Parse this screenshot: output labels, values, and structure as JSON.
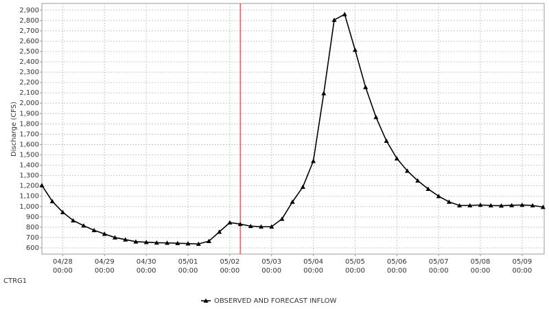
{
  "chart_data": {
    "type": "line",
    "y_label": "Discharge (CFS)",
    "station": "CTRG1",
    "x": [
      "04/27 12:00",
      "04/27 18:00",
      "04/28 00:00",
      "04/28 06:00",
      "04/28 12:00",
      "04/28 18:00",
      "04/29 00:00",
      "04/29 06:00",
      "04/29 12:00",
      "04/29 18:00",
      "04/30 00:00",
      "04/30 06:00",
      "04/30 12:00",
      "04/30 18:00",
      "05/01 00:00",
      "05/01 06:00",
      "05/01 12:00",
      "05/01 18:00",
      "05/02 00:00",
      "05/02 06:00",
      "05/02 12:00",
      "05/02 18:00",
      "05/03 00:00",
      "05/03 06:00",
      "05/03 12:00",
      "05/03 18:00",
      "05/04 00:00",
      "05/04 06:00",
      "05/04 12:00",
      "05/04 18:00",
      "05/05 00:00",
      "05/05 06:00",
      "05/05 12:00",
      "05/05 18:00",
      "05/06 00:00",
      "05/06 06:00",
      "05/06 12:00",
      "05/06 18:00",
      "05/07 00:00",
      "05/07 06:00",
      "05/07 12:00",
      "05/07 18:00",
      "05/08 00:00",
      "05/08 06:00",
      "05/08 12:00",
      "05/08 18:00",
      "05/09 00:00",
      "05/09 06:00",
      "05/09 12:00"
    ],
    "series": [
      {
        "name": "OBSERVED AND FORECAST INFLOW",
        "color": "#000000",
        "values": [
          1205,
          1050,
          945,
          865,
          815,
          770,
          735,
          700,
          680,
          660,
          655,
          650,
          648,
          645,
          642,
          638,
          665,
          755,
          845,
          830,
          810,
          805,
          805,
          880,
          1045,
          1190,
          1440,
          2095,
          2805,
          2860,
          2515,
          2155,
          1865,
          1635,
          1465,
          1345,
          1250,
          1170,
          1100,
          1045,
          1010,
          1010,
          1015,
          1010,
          1008,
          1012,
          1015,
          1010,
          995
        ]
      }
    ],
    "xlim": [
      "04/27 12:00",
      "05/09 12:40"
    ],
    "xticks": [
      {
        "value": "04/28 00:00",
        "label": "04/28\n00:00"
      },
      {
        "value": "04/29 00:00",
        "label": "04/29\n00:00"
      },
      {
        "value": "04/30 00:00",
        "label": "04/30\n00:00"
      },
      {
        "value": "05/01 00:00",
        "label": "05/01\n00:00"
      },
      {
        "value": "05/02 00:00",
        "label": "05/02\n00:00"
      },
      {
        "value": "05/03 00:00",
        "label": "05/03\n00:00"
      },
      {
        "value": "05/04 00:00",
        "label": "05/04\n00:00"
      },
      {
        "value": "05/05 00:00",
        "label": "05/05\n00:00"
      },
      {
        "value": "05/06 00:00",
        "label": "05/06\n00:00"
      },
      {
        "value": "05/07 00:00",
        "label": "05/07\n00:00"
      },
      {
        "value": "05/08 00:00",
        "label": "05/08\n00:00"
      },
      {
        "value": "05/09 00:00",
        "label": "05/09\n00:00"
      }
    ],
    "ylim": [
      540,
      2965
    ],
    "yticks": [
      600,
      700,
      800,
      900,
      {
        "value": 1000,
        "label": "1,000"
      },
      {
        "value": 1100,
        "label": "1,100"
      },
      {
        "value": 1200,
        "label": "1,200"
      },
      {
        "value": 1300,
        "label": "1,300"
      },
      {
        "value": 1400,
        "label": "1,400"
      },
      {
        "value": 1500,
        "label": "1,500"
      },
      {
        "value": 1600,
        "label": "1,600"
      },
      {
        "value": 1700,
        "label": "1,700"
      },
      {
        "value": 1800,
        "label": "1,800"
      },
      {
        "value": 1900,
        "label": "1,900"
      },
      {
        "value": 2000,
        "label": "2,000"
      },
      {
        "value": 2100,
        "label": "2,100"
      },
      {
        "value": 2200,
        "label": "2,200"
      },
      {
        "value": 2300,
        "label": "2,300"
      },
      {
        "value": 2400,
        "label": "2,400"
      },
      {
        "value": 2500,
        "label": "2,500"
      },
      {
        "value": 2600,
        "label": "2,600"
      },
      {
        "value": 2700,
        "label": "2,700"
      },
      {
        "value": 2800,
        "label": "2,800"
      },
      {
        "value": 2900,
        "label": "2,900"
      }
    ],
    "grid": true,
    "now_line": {
      "x": "05/02 06:00",
      "color": "#ff0000"
    }
  }
}
